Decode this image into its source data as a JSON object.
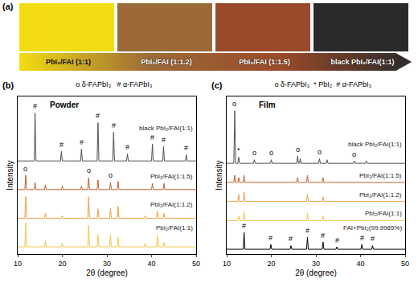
{
  "panel_a": {
    "label": "(a)",
    "samples": [
      {
        "label": "PbI₂/FAI (1:1)",
        "color": "#f2dc12"
      },
      {
        "label": "PbI₂/FAI (1:1.2)",
        "color": "#9c6a38"
      },
      {
        "label": "PbI₂/FAI (1:1.5)",
        "color": "#9a4a2a"
      },
      {
        "label": "black PbI₂/FAI(1:1)",
        "color": "#2a2a2a"
      }
    ]
  },
  "chart_data": [
    {
      "panel": "(b)",
      "type": "line",
      "title": "Powder",
      "header": "o δ-FAPbI₃   # α-FAPbI₃",
      "x_label": "2θ (degree)",
      "y_label": "Intensity",
      "xlim": [
        10,
        50
      ],
      "xticks": [
        10,
        20,
        30,
        40,
        50
      ],
      "ylim": [
        0,
        6.6
      ],
      "tick_labels": "x",
      "series": [
        {
          "name": "PbI₂/FAI(1:1)",
          "color": "#f2c84b",
          "x": [
            10,
            11.6,
            11.8,
            12,
            16,
            16.2,
            16.4,
            19.8,
            20,
            20.2,
            25.7,
            25.9,
            26.1,
            27.8,
            28,
            28.2,
            30.6,
            30.8,
            31,
            32.3,
            32.5,
            32.7,
            38.4,
            38.6,
            38.8,
            41.1,
            41.3,
            41.5,
            42.6,
            42.8,
            43,
            50
          ],
          "values": [
            0.3,
            0.3,
            1.3,
            0.3,
            0.3,
            0.55,
            0.3,
            0.3,
            0.45,
            0.3,
            0.3,
            1.2,
            0.3,
            0.3,
            0.8,
            0.3,
            0.3,
            0.8,
            0.3,
            0.3,
            0.7,
            0.3,
            0.3,
            0.45,
            0.3,
            0.3,
            0.8,
            0.3,
            0.3,
            0.5,
            0.3,
            0.3
          ],
          "annotations": []
        },
        {
          "name": "PbI₂/FAI(1:1.2)",
          "color": "#f0a040",
          "x": [
            10,
            11.6,
            11.8,
            12,
            16,
            16.2,
            16.4,
            19.8,
            20,
            20.2,
            25.7,
            25.9,
            26.1,
            27.8,
            28,
            28.2,
            30.6,
            30.8,
            31,
            32.3,
            32.5,
            32.7,
            38.4,
            38.6,
            38.8,
            41.1,
            41.3,
            41.5,
            42.6,
            42.8,
            43,
            50
          ],
          "values": [
            1.5,
            1.5,
            2.4,
            1.5,
            1.5,
            1.7,
            1.5,
            1.5,
            1.6,
            1.5,
            1.5,
            2.4,
            1.5,
            1.5,
            1.9,
            1.5,
            1.5,
            1.9,
            1.5,
            1.5,
            2.0,
            1.5,
            1.5,
            1.6,
            1.5,
            1.5,
            1.8,
            1.5,
            1.5,
            1.7,
            1.5,
            1.5
          ],
          "annotations": []
        },
        {
          "name": "PbI₂/FAI(1:1.5)",
          "color": "#c0602a",
          "x": [
            10,
            11.6,
            11.8,
            12,
            13.7,
            13.9,
            14.1,
            16,
            16.2,
            16.4,
            19.8,
            20,
            20.2,
            24.1,
            24.3,
            24.5,
            25.7,
            25.9,
            26.1,
            27.8,
            28,
            28.2,
            30.6,
            30.8,
            31,
            32.3,
            32.5,
            32.7,
            40,
            40.2,
            40.4,
            42.6,
            42.8,
            43,
            50
          ],
          "values": [
            2.7,
            2.7,
            3.3,
            2.7,
            2.7,
            3.0,
            2.7,
            2.7,
            2.9,
            2.7,
            2.7,
            2.85,
            2.7,
            2.7,
            2.85,
            2.7,
            2.7,
            3.2,
            2.7,
            2.7,
            3.1,
            2.7,
            2.7,
            3.0,
            2.7,
            2.7,
            3.05,
            2.7,
            2.7,
            2.95,
            2.7,
            2.7,
            2.95,
            2.7,
            2.7
          ],
          "annotations": [
            {
              "text": "o",
              "x": 11.8,
              "y": 3.35
            },
            {
              "text": "o",
              "x": 25.9,
              "y": 3.25
            },
            {
              "text": "o",
              "x": 30.8,
              "y": 3.05
            }
          ]
        },
        {
          "name": "black PbI₂/FAI(1:1)",
          "color": "#505050",
          "x": [
            10,
            13.7,
            13.9,
            14.1,
            19.6,
            19.8,
            20,
            24.1,
            24.3,
            24.5,
            27.8,
            28,
            28.2,
            31.3,
            31.5,
            31.7,
            34.4,
            34.6,
            34.8,
            40,
            40.2,
            40.4,
            42.5,
            42.7,
            42.9,
            47.6,
            47.8,
            48,
            50
          ],
          "values": [
            3.9,
            3.9,
            5.9,
            3.9,
            3.9,
            4.3,
            3.9,
            3.9,
            4.4,
            3.9,
            3.9,
            5.5,
            3.9,
            3.9,
            5.1,
            3.9,
            3.9,
            4.2,
            3.9,
            3.9,
            4.6,
            3.9,
            3.9,
            4.5,
            3.9,
            3.9,
            4.15,
            3.9,
            3.9
          ],
          "annotations": [
            {
              "text": "#",
              "x": 13.9,
              "y": 5.95
            },
            {
              "text": "#",
              "x": 19.8,
              "y": 4.35
            },
            {
              "text": "#",
              "x": 24.3,
              "y": 4.45
            },
            {
              "text": "#",
              "x": 28.0,
              "y": 5.55
            },
            {
              "text": "#",
              "x": 31.5,
              "y": 5.15
            },
            {
              "text": "#",
              "x": 34.6,
              "y": 4.25
            },
            {
              "text": "#",
              "x": 40.2,
              "y": 4.65
            },
            {
              "text": "#",
              "x": 42.7,
              "y": 4.55
            },
            {
              "text": "#",
              "x": 47.8,
              "y": 4.2
            }
          ]
        }
      ]
    },
    {
      "panel": "(c)",
      "type": "line",
      "title": "Film",
      "header": "o δ-FAPbI₃  * PbI₂  # α-FAPbI₃",
      "x_label": "2θ (degree)",
      "y_label": "Intensity",
      "xlim": [
        10,
        50
      ],
      "xticks": [
        10,
        20,
        30,
        40,
        50
      ],
      "ylim": [
        0,
        6.6
      ],
      "tick_labels": "x",
      "series": [
        {
          "name": "FAI+PbI₂(99.9985%)",
          "color": "#000000",
          "x": [
            10,
            13.7,
            13.9,
            14.1,
            19.7,
            19.9,
            20.1,
            24.2,
            24.4,
            24.6,
            27.9,
            28.1,
            28.3,
            31.4,
            31.6,
            31.8,
            34.5,
            34.7,
            34.9,
            40.1,
            40.3,
            40.5,
            42.5,
            42.7,
            42.9,
            50
          ],
          "values": [
            0.2,
            0.2,
            0.9,
            0.2,
            0.2,
            0.4,
            0.2,
            0.2,
            0.35,
            0.2,
            0.2,
            0.7,
            0.2,
            0.2,
            0.5,
            0.2,
            0.2,
            0.3,
            0.2,
            0.2,
            0.4,
            0.2,
            0.2,
            0.35,
            0.2,
            0.2
          ],
          "annotations": [
            {
              "text": "#",
              "x": 13.9,
              "y": 0.95
            },
            {
              "text": "#",
              "x": 19.9,
              "y": 0.45
            },
            {
              "text": "#",
              "x": 24.4,
              "y": 0.4
            },
            {
              "text": "#",
              "x": 28.1,
              "y": 0.75
            },
            {
              "text": "#",
              "x": 31.6,
              "y": 0.55
            },
            {
              "text": "#",
              "x": 34.7,
              "y": 0.35
            },
            {
              "text": "#",
              "x": 40.3,
              "y": 0.45
            },
            {
              "text": "#",
              "x": 42.7,
              "y": 0.4
            }
          ]
        },
        {
          "name": "PbI₂/FAI(1:1)",
          "color": "#f2c84b",
          "x": [
            10,
            12.5,
            12.7,
            12.9,
            13.7,
            13.9,
            14.1,
            27.9,
            28.1,
            28.3,
            31.4,
            31.6,
            31.8,
            50
          ],
          "values": [
            1.4,
            1.4,
            1.6,
            1.4,
            1.4,
            1.8,
            1.4,
            1.4,
            1.7,
            1.4,
            1.4,
            1.6,
            1.4,
            1.4
          ],
          "annotations": []
        },
        {
          "name": "PbI₂/FAI(1:1.2)",
          "color": "#f0a040",
          "x": [
            10,
            12.5,
            12.7,
            12.9,
            13.7,
            13.9,
            14.1,
            27.9,
            28.1,
            28.3,
            31.4,
            31.6,
            31.8,
            50
          ],
          "values": [
            2.2,
            2.2,
            2.5,
            2.2,
            2.2,
            2.6,
            2.2,
            2.2,
            2.5,
            2.2,
            2.2,
            2.4,
            2.2,
            2.2
          ],
          "annotations": []
        },
        {
          "name": "PbI₂/FAI(1:1.5)",
          "color": "#c0602a",
          "x": [
            10,
            11.6,
            11.8,
            12,
            12.5,
            12.7,
            12.9,
            13.7,
            13.9,
            14.1,
            25.7,
            25.9,
            26.1,
            27.9,
            28.1,
            28.3,
            31.4,
            31.6,
            31.8,
            50
          ],
          "values": [
            3.0,
            3.0,
            3.3,
            3.0,
            3.0,
            3.2,
            3.0,
            3.0,
            3.3,
            3.0,
            3.0,
            3.2,
            3.0,
            3.0,
            3.3,
            3.0,
            3.0,
            3.2,
            3.0,
            3.0
          ],
          "annotations": []
        },
        {
          "name": "black PbI₂/FAI(1:1)",
          "color": "#505050",
          "x": [
            10,
            11.6,
            11.8,
            12,
            12.5,
            12.7,
            12.9,
            16,
            16.2,
            16.4,
            19.8,
            20,
            20.2,
            25.7,
            25.9,
            26.1,
            26.3,
            26.5,
            26.7,
            30.6,
            30.8,
            31,
            32.3,
            32.5,
            32.7,
            38.4,
            38.6,
            38.8,
            41.1,
            41.3,
            41.5,
            50
          ],
          "values": [
            3.8,
            3.8,
            6.0,
            3.8,
            3.8,
            4.05,
            3.8,
            3.8,
            3.95,
            3.8,
            3.8,
            3.95,
            3.8,
            3.8,
            4.1,
            3.8,
            3.8,
            4.0,
            3.8,
            3.8,
            4.0,
            3.8,
            3.8,
            3.95,
            3.8,
            3.8,
            3.9,
            3.8,
            3.8,
            3.9,
            3.8,
            3.8
          ],
          "annotations": [
            {
              "text": "o",
              "x": 11.8,
              "y": 6.05
            },
            {
              "text": "*",
              "x": 12.7,
              "y": 4.1
            },
            {
              "text": "o",
              "x": 16.2,
              "y": 4.0
            },
            {
              "text": "o",
              "x": 20.0,
              "y": 4.0
            },
            {
              "text": "o",
              "x": 25.9,
              "y": 4.15
            },
            {
              "text": "o",
              "x": 30.8,
              "y": 4.05
            },
            {
              "text": "o",
              "x": 38.6,
              "y": 3.95
            }
          ]
        }
      ]
    }
  ]
}
